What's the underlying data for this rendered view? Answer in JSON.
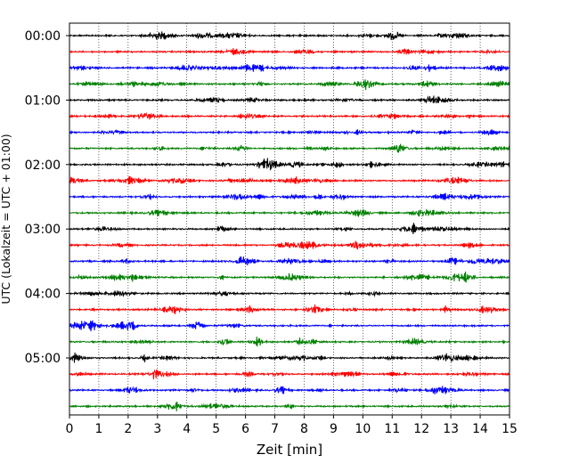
{
  "chart_data": {
    "type": "line",
    "title": "",
    "xlabel": "Zeit  [min]",
    "ylabel": "UTC (Lokalzeit = UTC + 01:00)",
    "xlim": [
      0,
      15
    ],
    "x_ticks": [
      "0",
      "1",
      "2",
      "3",
      "4",
      "5",
      "6",
      "7",
      "8",
      "9",
      "10",
      "11",
      "12",
      "13",
      "14",
      "15"
    ],
    "y_tick_labels": [
      "00:00",
      "01:00",
      "02:00",
      "03:00",
      "04:00",
      "05:00"
    ],
    "trace_interval_min": 15,
    "trace_count": 24,
    "trace_colors": [
      "#000000",
      "#ff0000",
      "#0000ff",
      "#008000"
    ],
    "grid": "vertical-dotted",
    "legend": "none"
  }
}
